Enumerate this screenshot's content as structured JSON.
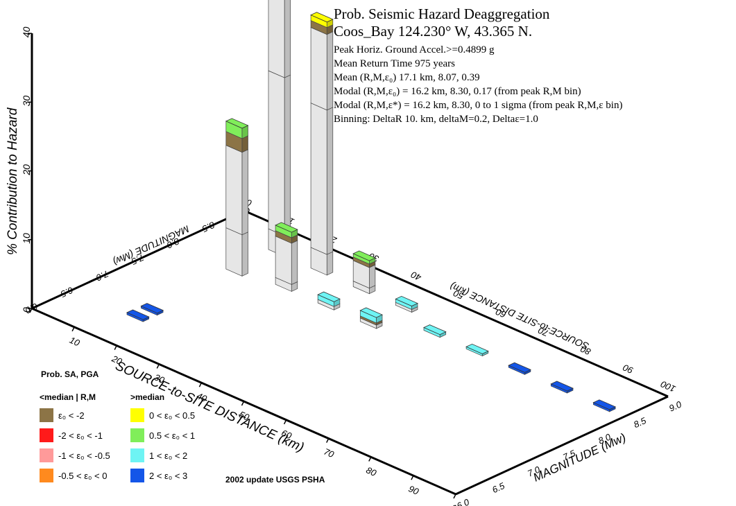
{
  "header": {
    "title_line1": "Prob. Seismic Hazard Deaggregation",
    "title_line2": "Coos_Bay  124.230° W, 43.365 N.",
    "lines": [
      "Peak Horiz. Ground Accel.>=0.4899  g",
      "Mean Return Time 975  years",
      "Mean (R,M,ε₀)  17.1 km, 8.07,  0.39",
      "Modal (R,M,ε₀) =  16.2 km, 8.30,  0.17 (from peak R,M bin)",
      "Modal (R,M,ε*) = 16.2 km, 8.30, 0 to 1 sigma  (from peak R,M,ε bin)",
      "Binning: DeltaR 10. km, deltaM=0.2, Deltaε=1.0"
    ]
  },
  "legend": {
    "title": "Prob. SA, PGA",
    "left_header": "<median | R,M",
    "right_header": ">median",
    "left_items": [
      {
        "label": "ε₀ < -2",
        "color": "#8c7446"
      },
      {
        "label": "-2 < ε₀ < -1",
        "color": "#ff1a1a"
      },
      {
        "label": "-1 < ε₀ < -0.5",
        "color": "#ff9a9a"
      },
      {
        "label": "-0.5 < ε₀ < 0",
        "color": "#ff8a1e"
      }
    ],
    "right_items": [
      {
        "label": "0 < ε₀ < 0.5",
        "color": "#ffff00"
      },
      {
        "label": "0.5 < ε₀ < 1",
        "color": "#80ee5a"
      },
      {
        "label": "1 < ε₀ < 2",
        "color": "#6ef4f4"
      },
      {
        "label": "2 < ε₀ < 3",
        "color": "#1456e8"
      }
    ]
  },
  "footer": "2002 update USGS PSHA",
  "chart_data": {
    "type": "bar3d",
    "z_axis": {
      "label": "% Contribution to Hazard",
      "ticks": [
        "0",
        "10",
        "20",
        "30",
        "40"
      ],
      "range": [
        0,
        40
      ]
    },
    "distance_axis": {
      "label": "SOURCE-to-SITE DISTANCE (km)",
      "ticks": [
        "0",
        "10",
        "20",
        "30",
        "40",
        "50",
        "60",
        "70",
        "80",
        "90",
        "100"
      ],
      "range": [
        0,
        100
      ]
    },
    "magnitude_axis": {
      "label": "MAGNITUDE (Mw)",
      "ticks": [
        "6.0",
        "6.5",
        "7.0",
        "7.5",
        "8.0",
        "8.5",
        "9.0"
      ],
      "range": [
        6.0,
        9.0
      ]
    },
    "colors": {
      "eps_neg2": "#8c7446",
      "eps_0_05": "#ffff00",
      "eps_05_1": "#80ee5a",
      "eps_1_2": "#6ef4f4",
      "eps_2_3": "#1456e8",
      "residual": "#e6e6e6"
    },
    "bars": [
      {
        "distance": 15,
        "magnitude": 6.6,
        "segments": [
          {
            "band": "eps_2_3",
            "value": 0.3
          }
        ]
      },
      {
        "distance": 15,
        "magnitude": 6.8,
        "segments": [
          {
            "band": "eps_2_3",
            "value": 0.3
          }
        ]
      },
      {
        "distance": 15,
        "magnitude": 8.0,
        "segments": [
          {
            "band": "residual",
            "value": 6
          },
          {
            "band": "residual",
            "value": 12
          },
          {
            "band": "eps_neg2",
            "value": 2
          },
          {
            "band": "eps_05_1",
            "value": 1.5
          }
        ]
      },
      {
        "distance": 15,
        "magnitude": 8.6,
        "segments": [
          {
            "band": "residual",
            "value": 3
          },
          {
            "band": "residual",
            "value": 23
          },
          {
            "band": "residual",
            "value": 15
          },
          {
            "band": "eps_neg2",
            "value": 3
          },
          {
            "band": "eps_0_05",
            "value": 1.5
          }
        ]
      },
      {
        "distance": 25,
        "magnitude": 8.6,
        "segments": [
          {
            "band": "residual",
            "value": 3
          },
          {
            "band": "residual",
            "value": 21
          },
          {
            "band": "residual",
            "value": 11
          },
          {
            "band": "eps_neg2",
            "value": 1
          },
          {
            "band": "eps_0_05",
            "value": 0.8
          }
        ]
      },
      {
        "distance": 25,
        "magnitude": 8.1,
        "segments": [
          {
            "band": "residual",
            "value": 1
          },
          {
            "band": "residual",
            "value": 6
          },
          {
            "band": "eps_neg2",
            "value": 0.8
          },
          {
            "band": "eps_05_1",
            "value": 0.8
          }
        ]
      },
      {
        "distance": 35,
        "magnitude": 8.6,
        "segments": [
          {
            "band": "residual",
            "value": 0.8
          },
          {
            "band": "residual",
            "value": 3
          },
          {
            "band": "eps_neg2",
            "value": 0.5
          },
          {
            "band": "eps_05_1",
            "value": 0.5
          }
        ]
      },
      {
        "distance": 35,
        "magnitude": 8.1,
        "segments": [
          {
            "band": "residual",
            "value": 0.5
          },
          {
            "band": "eps_1_2",
            "value": 0.7
          }
        ]
      },
      {
        "distance": 45,
        "magnitude": 8.6,
        "segments": [
          {
            "band": "residual",
            "value": 0.4
          },
          {
            "band": "eps_1_2",
            "value": 0.5
          }
        ]
      },
      {
        "distance": 45,
        "magnitude": 8.1,
        "segments": [
          {
            "band": "residual",
            "value": 0.5
          },
          {
            "band": "eps_neg2",
            "value": 0.3
          },
          {
            "band": "eps_1_2",
            "value": 0.8
          }
        ]
      },
      {
        "distance": 55,
        "magnitude": 8.4,
        "segments": [
          {
            "band": "eps_1_2",
            "value": 0.4
          }
        ]
      },
      {
        "distance": 65,
        "magnitude": 8.4,
        "segments": [
          {
            "band": "eps_1_2",
            "value": 0.3
          }
        ]
      },
      {
        "distance": 75,
        "magnitude": 8.4,
        "segments": [
          {
            "band": "eps_2_3",
            "value": 0.3
          }
        ]
      },
      {
        "distance": 85,
        "magnitude": 8.4,
        "segments": [
          {
            "band": "eps_2_3",
            "value": 0.3
          }
        ]
      },
      {
        "distance": 95,
        "magnitude": 8.4,
        "segments": [
          {
            "band": "eps_2_3",
            "value": 0.3
          }
        ]
      }
    ]
  }
}
